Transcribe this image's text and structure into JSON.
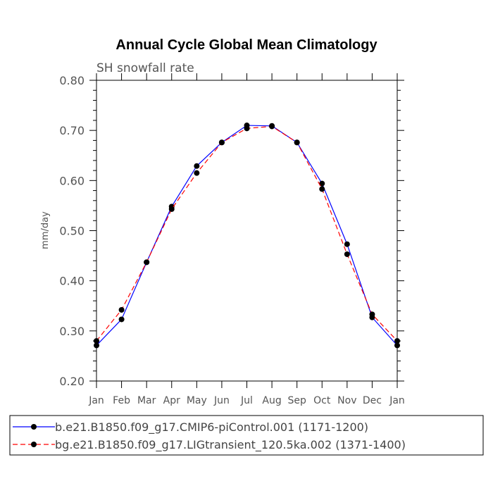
{
  "chart_data": {
    "type": "line",
    "title": "Annual Cycle Global Mean Climatology",
    "subtitle": "SH snowfall rate",
    "xlabel": "",
    "ylabel": "mm/day",
    "categories": [
      "Jan",
      "Feb",
      "Mar",
      "Apr",
      "May",
      "Jun",
      "Jul",
      "Aug",
      "Sep",
      "Oct",
      "Nov",
      "Dec",
      "Jan"
    ],
    "ylim": [
      0.2,
      0.8
    ],
    "yticks": [
      "0.20",
      "0.30",
      "0.40",
      "0.50",
      "0.60",
      "0.70",
      "0.80"
    ],
    "grid": false,
    "legend_position": "bottom",
    "series": [
      {
        "name": "b.e21.B1850.f09_g17.CMIP6-piControl.001 (1171-1200)",
        "color": "#0000ff",
        "dash": "solid",
        "values": [
          0.271,
          0.323,
          0.437,
          0.548,
          0.629,
          0.676,
          0.71,
          0.709,
          0.676,
          0.594,
          0.473,
          0.327,
          0.271
        ]
      },
      {
        "name": "bg.e21.B1850.f09_g17.LIGtransient_120.5ka.002 (1371-1400)",
        "color": "#ff0000",
        "dash": "dashed",
        "values": [
          0.28,
          0.342,
          0.437,
          0.543,
          0.615,
          0.676,
          0.704,
          0.708,
          0.676,
          0.583,
          0.453,
          0.333,
          0.28
        ]
      }
    ]
  }
}
